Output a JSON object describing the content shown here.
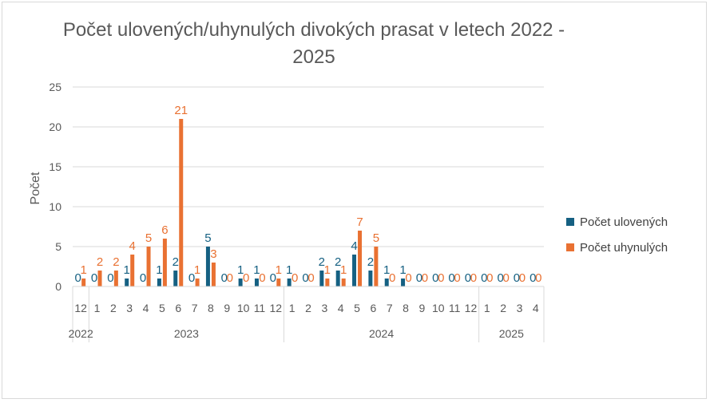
{
  "chart_data": {
    "type": "bar",
    "title": "Počet ulovených/uhynulých divokých prasat v letech 2022 - 2025",
    "ylabel": "Počet",
    "xlabel": "",
    "ylim": [
      0,
      25
    ],
    "yticks": [
      0,
      5,
      10,
      15,
      20,
      25
    ],
    "grid": true,
    "legend_position": "right",
    "categories": [
      "12",
      "1",
      "2",
      "3",
      "4",
      "5",
      "6",
      "7",
      "8",
      "9",
      "10",
      "11",
      "12",
      "1",
      "2",
      "3",
      "4",
      "5",
      "6",
      "7",
      "8",
      "9",
      "10",
      "11",
      "12",
      "1",
      "2",
      "3",
      "4"
    ],
    "years": [
      {
        "label": "2022",
        "count": 1
      },
      {
        "label": "2023",
        "count": 12
      },
      {
        "label": "2024",
        "count": 12
      },
      {
        "label": "2025",
        "count": 4
      }
    ],
    "series": [
      {
        "name": "Počet ulovených",
        "color": "#156082",
        "values": [
          0,
          0,
          0,
          1,
          0,
          1,
          2,
          0,
          5,
          0,
          1,
          1,
          0,
          1,
          0,
          2,
          2,
          4,
          2,
          1,
          1,
          0,
          0,
          0,
          0,
          0,
          0,
          0,
          0
        ]
      },
      {
        "name": "Počet uhynulých",
        "color": "#E97132",
        "values": [
          1,
          2,
          2,
          4,
          5,
          6,
          21,
          1,
          3,
          0,
          0,
          0,
          1,
          0,
          0,
          1,
          1,
          7,
          5,
          0,
          0,
          0,
          0,
          0,
          0,
          0,
          0,
          0,
          0
        ]
      }
    ]
  }
}
